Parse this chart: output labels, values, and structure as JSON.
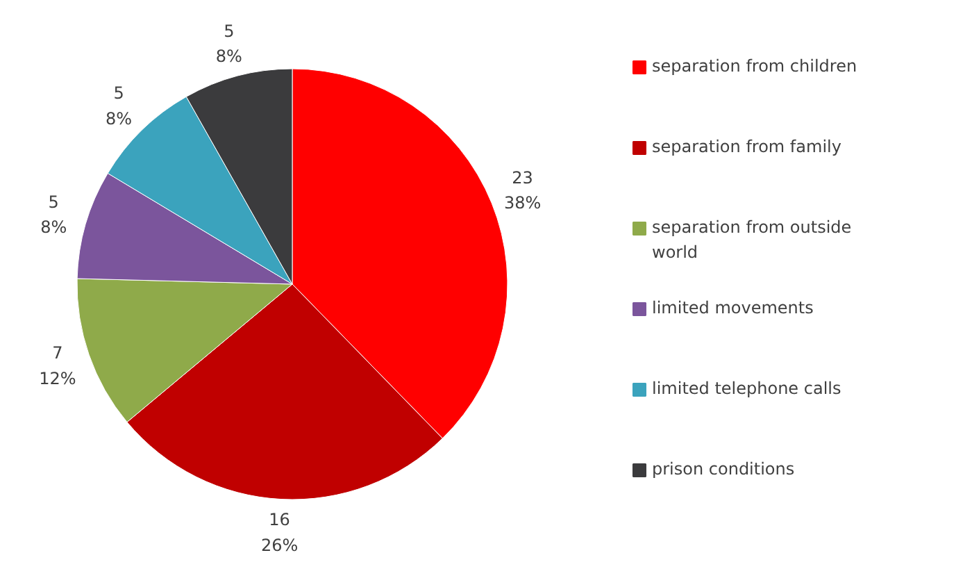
{
  "chart_data": {
    "type": "pie",
    "categories": [
      "separation from children",
      "separation from family",
      "separation from outside world",
      "limited movements",
      "limited telephone calls",
      "prison conditions"
    ],
    "values": [
      23,
      16,
      7,
      5,
      5,
      5
    ],
    "colors": [
      "#ff0000",
      "#c00000",
      "#8faa4a",
      "#7b559c",
      "#3ba3bd",
      "#3b3b3d"
    ],
    "value_labels": [
      "23\n38%",
      "16\n26%",
      "7\n12%",
      "5\n8%",
      "5\n8%",
      "5\n8%"
    ],
    "legend": "right"
  }
}
